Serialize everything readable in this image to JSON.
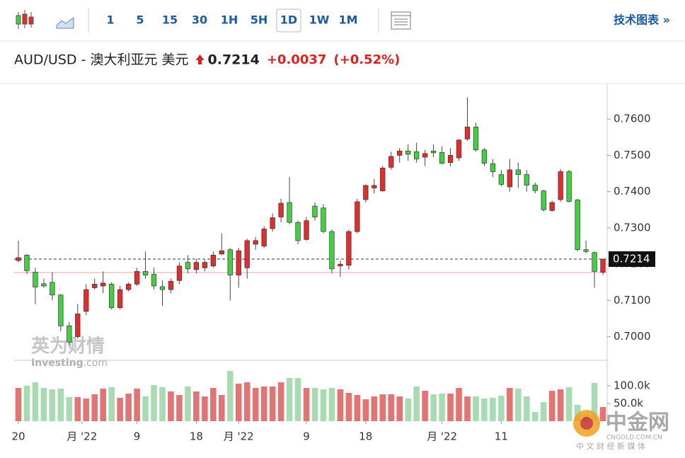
{
  "toolbar": {
    "intervals": [
      "1",
      "5",
      "15",
      "30",
      "1H",
      "5H",
      "1D",
      "1W",
      "1M"
    ],
    "active": "1D",
    "link": "技术图表 »"
  },
  "chart_data": {
    "type": "candlestick",
    "title": "AUD/USD - 澳大利亚元 美元",
    "last_price": {
      "value": 0.7214,
      "label": "0.7214"
    },
    "change": {
      "value": 0.0037,
      "label": "+0.0037"
    },
    "change_pct": {
      "value": 0.52,
      "label": "(+0.52%)"
    },
    "prev_close": 0.7177,
    "up_color": "#e52b2b",
    "down_color": "#3fd13f",
    "up_volume_color": "#e47474",
    "down_volume_color": "#a9dbb3",
    "open": [
      0.721,
      0.7225,
      0.7178,
      0.7146,
      0.715,
      0.7115,
      0.703,
      0.7,
      0.707,
      0.7135,
      0.714,
      0.7145,
      0.708,
      0.713,
      0.7145,
      0.718,
      0.7172,
      0.7138,
      0.713,
      0.7155,
      0.7205,
      0.7185,
      0.719,
      0.7195,
      0.7228,
      0.724,
      0.717,
      0.719,
      0.7255,
      0.725,
      0.7298,
      0.733,
      0.737,
      0.7315,
      0.7268,
      0.736,
      0.7355,
      0.729,
      0.7195,
      0.7197,
      0.729,
      0.7378,
      0.741,
      0.7402,
      0.7467,
      0.75,
      0.7512,
      0.751,
      0.7495,
      0.7512,
      0.7508,
      0.748,
      0.7493,
      0.7545,
      0.7578,
      0.7515,
      0.7477,
      0.7447,
      0.7413,
      0.746,
      0.7447,
      0.7418,
      0.7402,
      0.7348,
      0.7378,
      0.7455,
      0.7377,
      0.724,
      0.7232,
      0.7178
    ],
    "high": [
      0.7265,
      0.7228,
      0.719,
      0.716,
      0.7178,
      0.7118,
      0.704,
      0.709,
      0.7145,
      0.716,
      0.718,
      0.715,
      0.714,
      0.715,
      0.719,
      0.7235,
      0.719,
      0.7155,
      0.716,
      0.7205,
      0.7225,
      0.7215,
      0.7212,
      0.7235,
      0.7285,
      0.7245,
      0.7245,
      0.727,
      0.7275,
      0.7305,
      0.734,
      0.738,
      0.744,
      0.732,
      0.733,
      0.737,
      0.7365,
      0.7295,
      0.721,
      0.7295,
      0.738,
      0.742,
      0.7435,
      0.747,
      0.751,
      0.752,
      0.753,
      0.7535,
      0.7515,
      0.753,
      0.7525,
      0.752,
      0.7545,
      0.766,
      0.759,
      0.752,
      0.749,
      0.746,
      0.749,
      0.748,
      0.746,
      0.7425,
      0.7405,
      0.7375,
      0.7462,
      0.746,
      0.738,
      0.7265,
      0.7235,
      0.7215
    ],
    "low": [
      0.7205,
      0.7173,
      0.709,
      0.7135,
      0.71,
      0.7015,
      0.6975,
      0.6995,
      0.706,
      0.713,
      0.712,
      0.7075,
      0.7075,
      0.7125,
      0.714,
      0.716,
      0.713,
      0.7085,
      0.712,
      0.7145,
      0.7175,
      0.7175,
      0.718,
      0.719,
      0.7225,
      0.71,
      0.7135,
      0.716,
      0.724,
      0.7245,
      0.729,
      0.7315,
      0.731,
      0.7255,
      0.7265,
      0.732,
      0.7285,
      0.7175,
      0.7165,
      0.7185,
      0.7285,
      0.737,
      0.7395,
      0.74,
      0.746,
      0.748,
      0.7485,
      0.748,
      0.747,
      0.7495,
      0.7475,
      0.747,
      0.7485,
      0.754,
      0.751,
      0.747,
      0.744,
      0.7415,
      0.74,
      0.741,
      0.74,
      0.7395,
      0.7345,
      0.7345,
      0.7372,
      0.737,
      0.7235,
      0.723,
      0.7135,
      0.717
    ],
    "close": [
      0.7218,
      0.7182,
      0.7137,
      0.714,
      0.7115,
      0.703,
      0.6985,
      0.7063,
      0.713,
      0.7145,
      0.7148,
      0.708,
      0.713,
      0.7145,
      0.718,
      0.717,
      0.714,
      0.713,
      0.7153,
      0.7195,
      0.7187,
      0.7205,
      0.7205,
      0.7225,
      0.7237,
      0.717,
      0.7237,
      0.7265,
      0.7265,
      0.7297,
      0.7328,
      0.7368,
      0.7315,
      0.7265,
      0.732,
      0.733,
      0.729,
      0.7187,
      0.72,
      0.729,
      0.7372,
      0.7417,
      0.7417,
      0.7465,
      0.7497,
      0.7512,
      0.7503,
      0.749,
      0.7505,
      0.7507,
      0.7478,
      0.75,
      0.7542,
      0.7578,
      0.7515,
      0.7478,
      0.7455,
      0.742,
      0.746,
      0.7447,
      0.7418,
      0.7403,
      0.735,
      0.737,
      0.7455,
      0.7373,
      0.724,
      0.7235,
      0.718,
      0.7214
    ],
    "volume": [
      94000,
      100000,
      110000,
      94000,
      90000,
      92000,
      68000,
      68000,
      64000,
      76000,
      92000,
      96000,
      66000,
      78000,
      92000,
      70000,
      102000,
      96000,
      84000,
      74000,
      98000,
      84000,
      70000,
      94000,
      74000,
      142000,
      106000,
      110000,
      94000,
      98000,
      98000,
      110000,
      122000,
      122000,
      94000,
      94000,
      90000,
      94000,
      90000,
      80000,
      74000,
      62000,
      70000,
      76000,
      76000,
      70000,
      64000,
      98000,
      86000,
      76000,
      78000,
      78000,
      94000,
      70000,
      70000,
      64000,
      66000,
      72000,
      94000,
      92000,
      70000,
      26000,
      54000,
      86000,
      90000,
      96000,
      46000,
      20000,
      108000,
      40000
    ],
    "xlim": [
      -0.5,
      69.5
    ],
    "xticks": [
      {
        "value": 0,
        "label": "20"
      },
      {
        "value": 7.5,
        "label": "月 '22"
      },
      {
        "value": 14,
        "label": "9"
      },
      {
        "value": 21,
        "label": "18"
      },
      {
        "value": 26,
        "label": "月 '22"
      },
      {
        "value": 34,
        "label": "9"
      },
      {
        "value": 41,
        "label": "18"
      },
      {
        "value": 50,
        "label": "月 '22"
      },
      {
        "value": 57,
        "label": "11"
      }
    ],
    "ylim": [
      0.6937,
      0.7694
    ],
    "yticks": [
      {
        "value": 0.7,
        "label": "0.7000"
      },
      {
        "value": 0.71,
        "label": "0.7100"
      },
      {
        "value": 0.72,
        "label": "0.7200"
      },
      {
        "value": 0.73,
        "label": "0.7300"
      },
      {
        "value": 0.74,
        "label": "0.7400"
      },
      {
        "value": 0.75,
        "label": "0.7500"
      },
      {
        "value": 0.76,
        "label": "0.7600"
      }
    ],
    "volume_ylim": [
      0,
      170000
    ],
    "volume_yticks": [
      {
        "value": 50000,
        "label": "50.0k"
      },
      {
        "value": 100000,
        "label": "100.0k"
      }
    ]
  },
  "watermarks": {
    "brand_cn": "英为财情",
    "brand": "Investing",
    "brand_suffix": ".com",
    "logo": "中金网",
    "logo_url": "CNGOLD.COM.CN",
    "logo_slogan": "中 文 财 经 新 媒 体"
  }
}
